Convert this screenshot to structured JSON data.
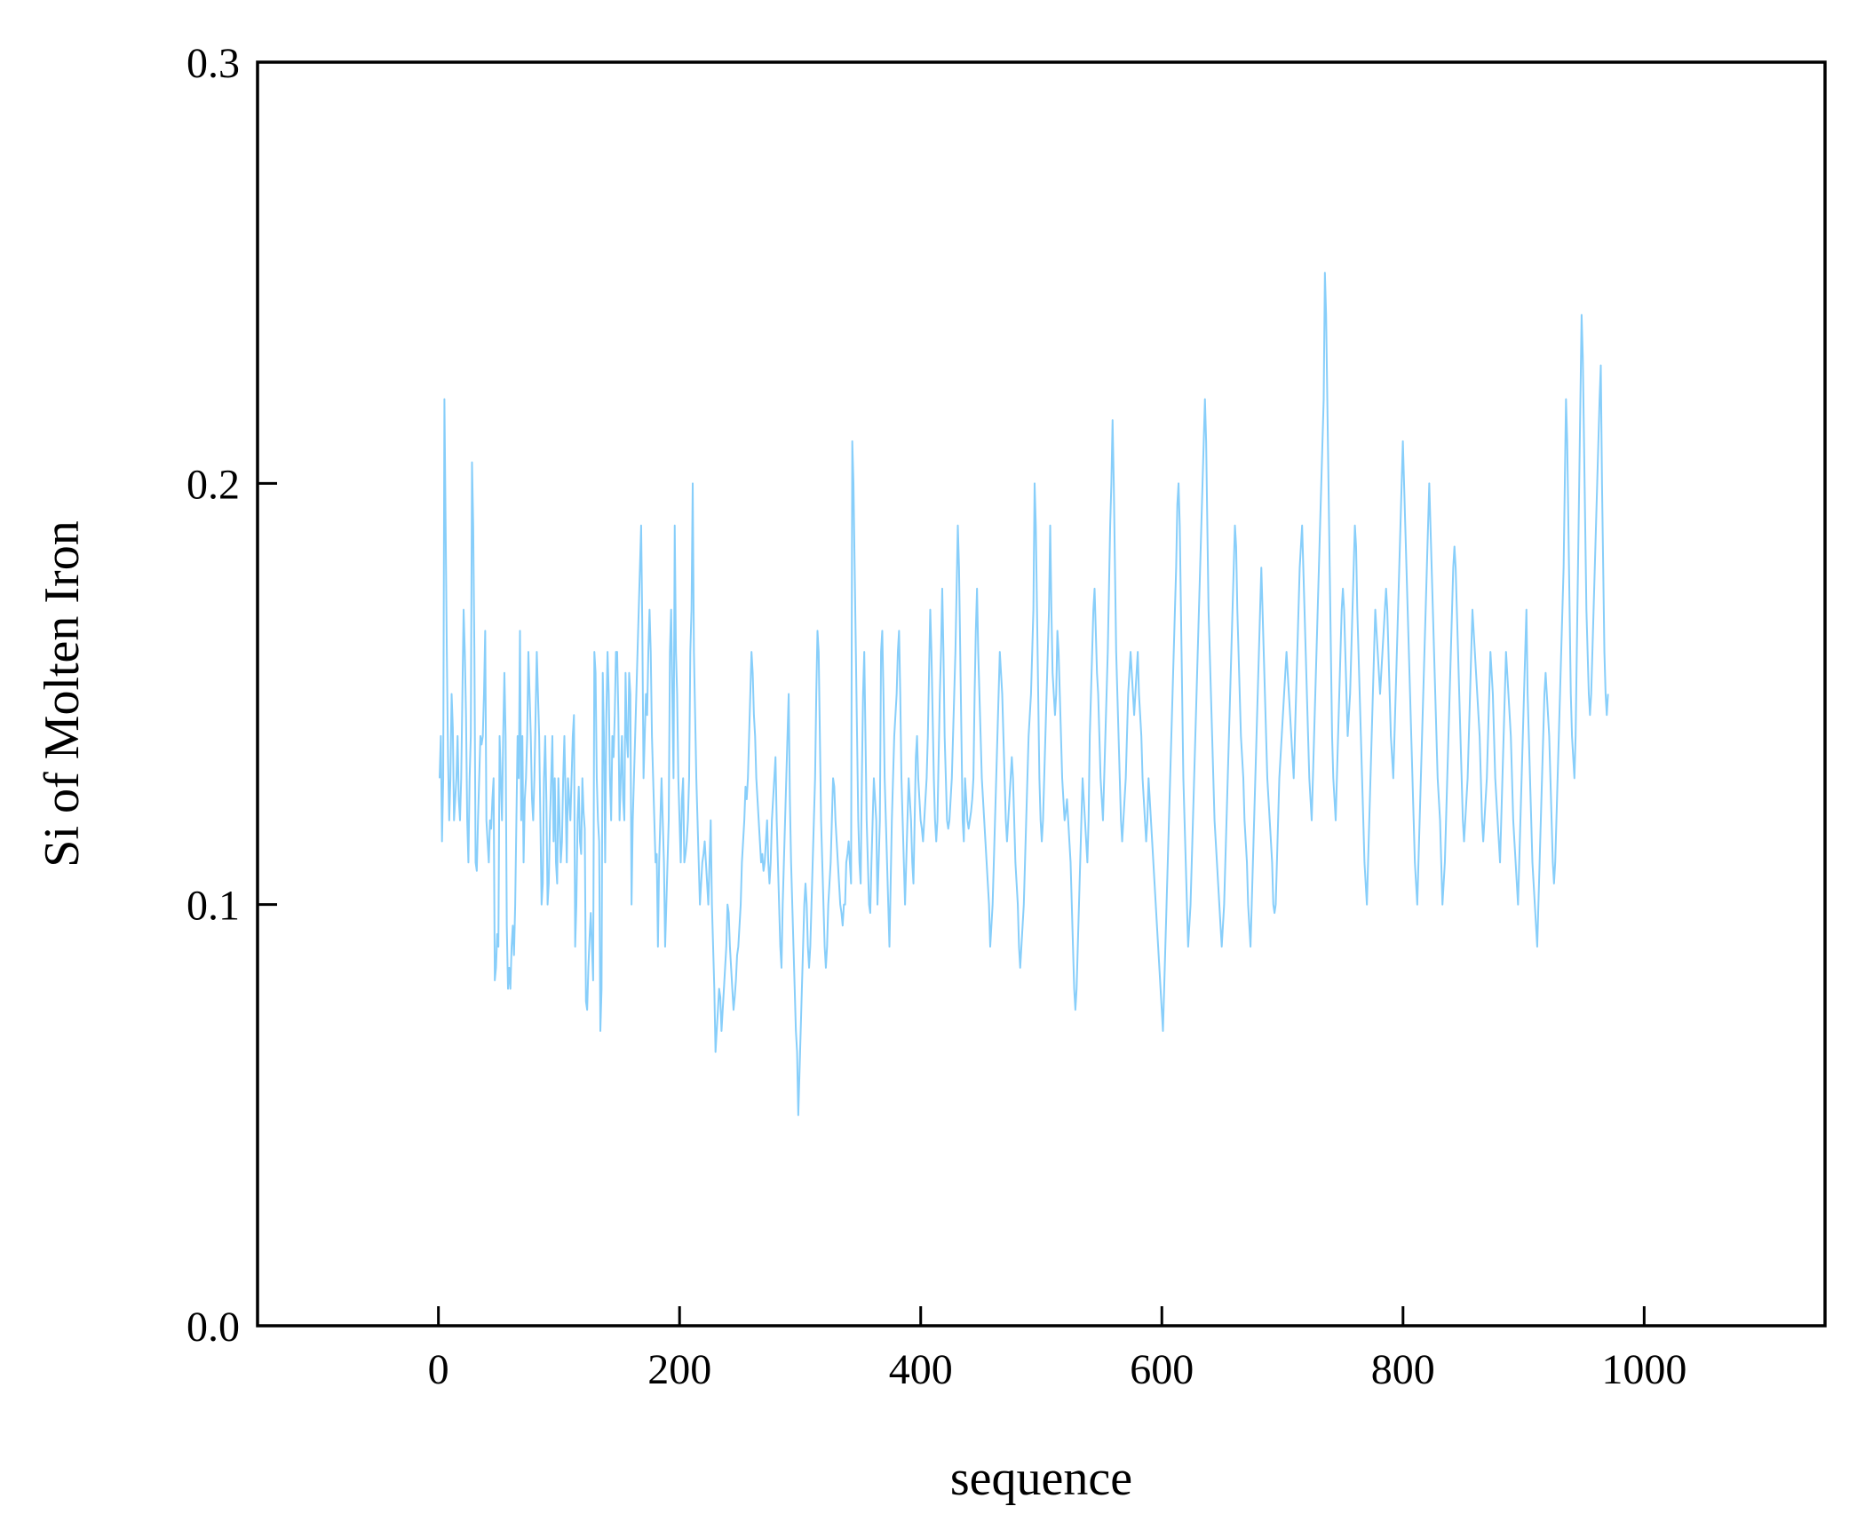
{
  "chart_data": {
    "type": "line",
    "title": "",
    "xlabel": "sequence",
    "ylabel": "Si of Molten Iron",
    "xlim": [
      -150,
      1150
    ],
    "ylim": [
      0.0,
      0.3
    ],
    "xticks": [
      0,
      200,
      400,
      600,
      800,
      1000
    ],
    "xtick_labels": [
      "0",
      "200",
      "400",
      "600",
      "800",
      "1000"
    ],
    "yticks": [
      0.0,
      0.1,
      0.2,
      0.3
    ],
    "ytick_labels": [
      "0.0",
      "0.1",
      "0.2",
      "0.3"
    ],
    "grid": false,
    "legend": "none",
    "series_color": "#87cefa",
    "series": [
      {
        "x_start": 1,
        "x_end": 970,
        "values": [
          0.13,
          0.14,
          0.115,
          0.13,
          0.22,
          0.19,
          0.16,
          0.135,
          0.12,
          0.13,
          0.15,
          0.142,
          0.12,
          0.125,
          0.13,
          0.14,
          0.125,
          0.12,
          0.13,
          0.15,
          0.17,
          0.16,
          0.145,
          0.12,
          0.11,
          0.13,
          0.14,
          0.205,
          0.19,
          0.16,
          0.11,
          0.108,
          0.12,
          0.13,
          0.14,
          0.138,
          0.14,
          0.15,
          0.165,
          0.12,
          0.115,
          0.11,
          0.12,
          0.118,
          0.125,
          0.13,
          0.082,
          0.085,
          0.093,
          0.09,
          0.14,
          0.13,
          0.12,
          0.14,
          0.155,
          0.14,
          0.095,
          0.08,
          0.085,
          0.08,
          0.09,
          0.095,
          0.088,
          0.1,
          0.12,
          0.14,
          0.13,
          0.165,
          0.12,
          0.14,
          0.11,
          0.125,
          0.13,
          0.14,
          0.16,
          0.15,
          0.14,
          0.125,
          0.12,
          0.13,
          0.145,
          0.16,
          0.15,
          0.14,
          0.12,
          0.1,
          0.105,
          0.13,
          0.14,
          0.125,
          0.1,
          0.105,
          0.12,
          0.13,
          0.14,
          0.115,
          0.13,
          0.11,
          0.105,
          0.13,
          0.12,
          0.11,
          0.115,
          0.13,
          0.14,
          0.125,
          0.11,
          0.13,
          0.125,
          0.12,
          0.13,
          0.14,
          0.145,
          0.09,
          0.1,
          0.12,
          0.128,
          0.115,
          0.112,
          0.13,
          0.122,
          0.118,
          0.077,
          0.075,
          0.085,
          0.092,
          0.098,
          0.09,
          0.082,
          0.16,
          0.155,
          0.13,
          0.12,
          0.115,
          0.07,
          0.08,
          0.155,
          0.14,
          0.11,
          0.145,
          0.16,
          0.15,
          0.13,
          0.12,
          0.14,
          0.135,
          0.145,
          0.16,
          0.16,
          0.145,
          0.12,
          0.13,
          0.14,
          0.125,
          0.12,
          0.155,
          0.14,
          0.135,
          0.155,
          0.15,
          0.1,
          0.12,
          0.13,
          0.14,
          0.15,
          0.16,
          0.17,
          0.18,
          0.19,
          0.165,
          0.13,
          0.14,
          0.15,
          0.145,
          0.16,
          0.17,
          0.16,
          0.14,
          0.13,
          0.12,
          0.11,
          0.112,
          0.09,
          0.11,
          0.12,
          0.13,
          0.12,
          0.11,
          0.09,
          0.1,
          0.11,
          0.12,
          0.16,
          0.17,
          0.15,
          0.13,
          0.19,
          0.16,
          0.15,
          0.13,
          0.12,
          0.11,
          0.125,
          0.13,
          0.11,
          0.112,
          0.115,
          0.12,
          0.13,
          0.16,
          0.17,
          0.2,
          0.16,
          0.145,
          0.13,
          0.12,
          0.11,
          0.1,
          0.105,
          0.11,
          0.112,
          0.115,
          0.11,
          0.105,
          0.1,
          0.11,
          0.12,
          0.1,
          0.09,
          0.08,
          0.065,
          0.07,
          0.075,
          0.08,
          0.078,
          0.07,
          0.075,
          0.08,
          0.085,
          0.09,
          0.1,
          0.098,
          0.09,
          0.085,
          0.08,
          0.075,
          0.078,
          0.082,
          0.088,
          0.09,
          0.095,
          0.1,
          0.11,
          0.115,
          0.12,
          0.128,
          0.125,
          0.13,
          0.14,
          0.15,
          0.16,
          0.155,
          0.145,
          0.14,
          0.13,
          0.125,
          0.12,
          0.115,
          0.11,
          0.112,
          0.108,
          0.11,
          0.115,
          0.12,
          0.11,
          0.105,
          0.11,
          0.12,
          0.125,
          0.13,
          0.135,
          0.12,
          0.11,
          0.1,
          0.09,
          0.085,
          0.1,
          0.11,
          0.12,
          0.13,
          0.14,
          0.15,
          0.125,
          0.11,
          0.1,
          0.09,
          0.08,
          0.07,
          0.065,
          0.05,
          0.06,
          0.07,
          0.08,
          0.09,
          0.1,
          0.105,
          0.1,
          0.09,
          0.085,
          0.09,
          0.1,
          0.11,
          0.12,
          0.13,
          0.15,
          0.165,
          0.16,
          0.14,
          0.12,
          0.11,
          0.1,
          0.09,
          0.085,
          0.09,
          0.1,
          0.105,
          0.11,
          0.12,
          0.13,
          0.128,
          0.12,
          0.115,
          0.11,
          0.105,
          0.1,
          0.098,
          0.095,
          0.1,
          0.1,
          0.11,
          0.112,
          0.115,
          0.11,
          0.105,
          0.21,
          0.2,
          0.18,
          0.16,
          0.14,
          0.12,
          0.11,
          0.105,
          0.13,
          0.15,
          0.16,
          0.14,
          0.12,
          0.11,
          0.1,
          0.098,
          0.11,
          0.12,
          0.13,
          0.125,
          0.12,
          0.1,
          0.11,
          0.12,
          0.16,
          0.165,
          0.15,
          0.13,
          0.12,
          0.11,
          0.1,
          0.09,
          0.105,
          0.12,
          0.13,
          0.14,
          0.145,
          0.15,
          0.16,
          0.165,
          0.15,
          0.13,
          0.12,
          0.11,
          0.1,
          0.11,
          0.12,
          0.13,
          0.125,
          0.12,
          0.11,
          0.105,
          0.12,
          0.135,
          0.14,
          0.13,
          0.125,
          0.12,
          0.118,
          0.115,
          0.12,
          0.125,
          0.13,
          0.14,
          0.155,
          0.17,
          0.16,
          0.145,
          0.13,
          0.12,
          0.115,
          0.12,
          0.135,
          0.15,
          0.16,
          0.175,
          0.16,
          0.14,
          0.13,
          0.12,
          0.118,
          0.12,
          0.125,
          0.13,
          0.14,
          0.15,
          0.16,
          0.175,
          0.19,
          0.18,
          0.16,
          0.14,
          0.12,
          0.115,
          0.13,
          0.125,
          0.12,
          0.118,
          0.12,
          0.122,
          0.125,
          0.13,
          0.15,
          0.165,
          0.175,
          0.16,
          0.15,
          0.14,
          0.13,
          0.125,
          0.12,
          0.115,
          0.11,
          0.105,
          0.1,
          0.09,
          0.095,
          0.1,
          0.11,
          0.12,
          0.13,
          0.14,
          0.15,
          0.16,
          0.155,
          0.15,
          0.14,
          0.13,
          0.12,
          0.115,
          0.12,
          0.125,
          0.13,
          0.135,
          0.13,
          0.12,
          0.11,
          0.105,
          0.1,
          0.09,
          0.085,
          0.09,
          0.095,
          0.1,
          0.11,
          0.12,
          0.13,
          0.14,
          0.145,
          0.15,
          0.16,
          0.17,
          0.2,
          0.19,
          0.17,
          0.15,
          0.13,
          0.12,
          0.115,
          0.12,
          0.13,
          0.14,
          0.15,
          0.16,
          0.17,
          0.19,
          0.17,
          0.155,
          0.15,
          0.145,
          0.15,
          0.165,
          0.16,
          0.15,
          0.14,
          0.13,
          0.125,
          0.12,
          0.122,
          0.125,
          0.12,
          0.115,
          0.11,
          0.1,
          0.09,
          0.08,
          0.075,
          0.08,
          0.09,
          0.1,
          0.11,
          0.12,
          0.13,
          0.125,
          0.12,
          0.115,
          0.11,
          0.12,
          0.14,
          0.15,
          0.16,
          0.17,
          0.175,
          0.165,
          0.155,
          0.15,
          0.14,
          0.13,
          0.125,
          0.12,
          0.13,
          0.14,
          0.15,
          0.16,
          0.175,
          0.19,
          0.2,
          0.215,
          0.2,
          0.18,
          0.16,
          0.15,
          0.14,
          0.13,
          0.12,
          0.115,
          0.12,
          0.125,
          0.13,
          0.14,
          0.15,
          0.155,
          0.16,
          0.155,
          0.15,
          0.145,
          0.15,
          0.155,
          0.16,
          0.15,
          0.145,
          0.14,
          0.13,
          0.125,
          0.12,
          0.115,
          0.12,
          0.13,
          0.125,
          0.12,
          0.115,
          0.11,
          0.105,
          0.1,
          0.095,
          0.09,
          0.085,
          0.08,
          0.075,
          0.07,
          0.08,
          0.09,
          0.1,
          0.11,
          0.12,
          0.13,
          0.14,
          0.15,
          0.16,
          0.17,
          0.18,
          0.195,
          0.2,
          0.19,
          0.17,
          0.15,
          0.13,
          0.12,
          0.11,
          0.1,
          0.09,
          0.095,
          0.1,
          0.11,
          0.12,
          0.13,
          0.14,
          0.15,
          0.16,
          0.17,
          0.18,
          0.19,
          0.2,
          0.21,
          0.22,
          0.21,
          0.19,
          0.17,
          0.16,
          0.15,
          0.14,
          0.13,
          0.12,
          0.115,
          0.11,
          0.105,
          0.1,
          0.095,
          0.09,
          0.095,
          0.1,
          0.11,
          0.12,
          0.13,
          0.14,
          0.15,
          0.16,
          0.17,
          0.18,
          0.19,
          0.185,
          0.17,
          0.16,
          0.15,
          0.14,
          0.135,
          0.13,
          0.12,
          0.115,
          0.11,
          0.1,
          0.095,
          0.09,
          0.1,
          0.11,
          0.12,
          0.13,
          0.14,
          0.15,
          0.16,
          0.17,
          0.18,
          0.17,
          0.16,
          0.15,
          0.14,
          0.13,
          0.125,
          0.12,
          0.115,
          0.11,
          0.1,
          0.098,
          0.1,
          0.11,
          0.12,
          0.13,
          0.135,
          0.14,
          0.145,
          0.15,
          0.155,
          0.16,
          0.155,
          0.15,
          0.145,
          0.14,
          0.135,
          0.13,
          0.14,
          0.15,
          0.16,
          0.17,
          0.18,
          0.185,
          0.19,
          0.18,
          0.17,
          0.16,
          0.15,
          0.14,
          0.13,
          0.125,
          0.12,
          0.13,
          0.14,
          0.15,
          0.16,
          0.17,
          0.18,
          0.19,
          0.2,
          0.21,
          0.22,
          0.25,
          0.24,
          0.22,
          0.2,
          0.18,
          0.16,
          0.14,
          0.13,
          0.125,
          0.12,
          0.13,
          0.14,
          0.15,
          0.16,
          0.17,
          0.175,
          0.17,
          0.16,
          0.15,
          0.14,
          0.145,
          0.15,
          0.16,
          0.17,
          0.18,
          0.19,
          0.185,
          0.17,
          0.16,
          0.15,
          0.14,
          0.13,
          0.12,
          0.11,
          0.105,
          0.1,
          0.11,
          0.12,
          0.13,
          0.14,
          0.15,
          0.16,
          0.17,
          0.165,
          0.16,
          0.155,
          0.15,
          0.155,
          0.16,
          0.165,
          0.17,
          0.175,
          0.17,
          0.16,
          0.15,
          0.14,
          0.135,
          0.13,
          0.14,
          0.15,
          0.16,
          0.17,
          0.18,
          0.19,
          0.2,
          0.21,
          0.2,
          0.19,
          0.18,
          0.17,
          0.16,
          0.15,
          0.14,
          0.13,
          0.12,
          0.11,
          0.105,
          0.1,
          0.11,
          0.12,
          0.13,
          0.14,
          0.15,
          0.16,
          0.17,
          0.18,
          0.19,
          0.2,
          0.19,
          0.18,
          0.17,
          0.16,
          0.15,
          0.14,
          0.13,
          0.125,
          0.12,
          0.11,
          0.1,
          0.105,
          0.11,
          0.12,
          0.13,
          0.14,
          0.15,
          0.16,
          0.17,
          0.18,
          0.185,
          0.18,
          0.17,
          0.16,
          0.15,
          0.14,
          0.13,
          0.12,
          0.115,
          0.12,
          0.125,
          0.13,
          0.14,
          0.15,
          0.16,
          0.17,
          0.165,
          0.16,
          0.155,
          0.15,
          0.145,
          0.14,
          0.13,
          0.12,
          0.115,
          0.12,
          0.125,
          0.13,
          0.14,
          0.15,
          0.16,
          0.155,
          0.15,
          0.14,
          0.13,
          0.125,
          0.12,
          0.115,
          0.11,
          0.12,
          0.13,
          0.14,
          0.15,
          0.16,
          0.155,
          0.15,
          0.145,
          0.14,
          0.13,
          0.12,
          0.115,
          0.11,
          0.105,
          0.1,
          0.11,
          0.12,
          0.13,
          0.14,
          0.15,
          0.16,
          0.17,
          0.15,
          0.14,
          0.13,
          0.12,
          0.11,
          0.105,
          0.1,
          0.095,
          0.09,
          0.1,
          0.11,
          0.12,
          0.13,
          0.14,
          0.15,
          0.155,
          0.15,
          0.145,
          0.14,
          0.13,
          0.12,
          0.11,
          0.105,
          0.11,
          0.12,
          0.13,
          0.14,
          0.15,
          0.16,
          0.17,
          0.18,
          0.2,
          0.22,
          0.21,
          0.19,
          0.17,
          0.15,
          0.14,
          0.135,
          0.13,
          0.14,
          0.16,
          0.18,
          0.2,
          0.22,
          0.24,
          0.23,
          0.21,
          0.19,
          0.17,
          0.16,
          0.15,
          0.145,
          0.15,
          0.16,
          0.17,
          0.18,
          0.19,
          0.2,
          0.21,
          0.22,
          0.228,
          0.2,
          0.18,
          0.16,
          0.15,
          0.145,
          0.15
        ]
      }
    ]
  }
}
